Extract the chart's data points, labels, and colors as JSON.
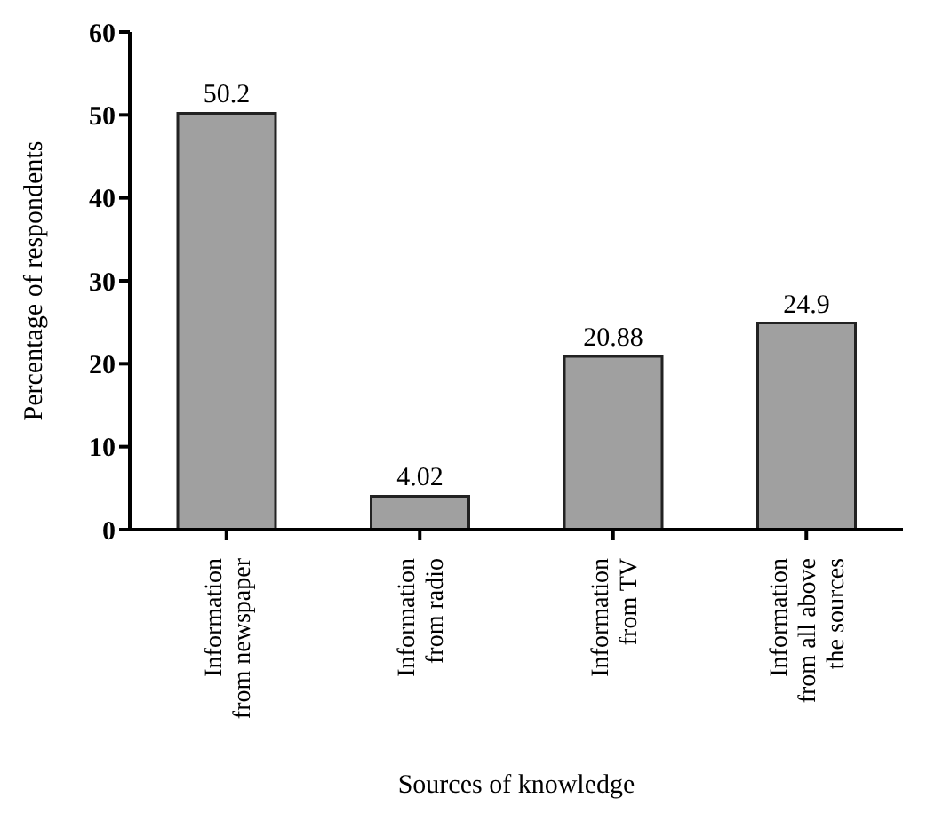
{
  "chart_data": {
    "type": "bar",
    "xlabel": "Sources of knowledge",
    "ylabel": "Percentage of respondents",
    "categories": [
      "Information\nfrom newspaper",
      "Information\nfrom radio",
      "Information\nfrom TV",
      "Information\nfrom all above\nthe sources"
    ],
    "values": [
      50.2,
      4.02,
      20.88,
      24.9
    ],
    "value_labels": [
      "50.2",
      "4.02",
      "20.88",
      "24.9"
    ],
    "color": "#a0a0a0",
    "ylim": [
      0,
      60
    ],
    "yticks": [
      0,
      10,
      20,
      30,
      40,
      50,
      60
    ],
    "grid": false
  }
}
